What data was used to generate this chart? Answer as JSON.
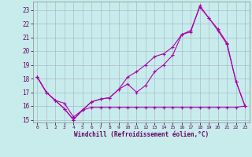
{
  "xlabel": "Windchill (Refroidissement éolien,°C)",
  "bg_color": "#c8ecec",
  "grid_color": "#aabbcc",
  "line_color": "#aa00aa",
  "xlim": [
    -0.5,
    23.5
  ],
  "ylim": [
    14.8,
    23.6
  ],
  "yticks": [
    15,
    16,
    17,
    18,
    19,
    20,
    21,
    22,
    23
  ],
  "xticks": [
    0,
    1,
    2,
    3,
    4,
    5,
    6,
    7,
    8,
    9,
    10,
    11,
    12,
    13,
    14,
    15,
    16,
    17,
    18,
    19,
    20,
    21,
    22,
    23
  ],
  "line1_x": [
    0,
    1,
    2,
    3,
    4,
    5,
    6,
    7,
    8,
    9,
    10,
    11,
    12,
    13,
    14,
    15,
    16,
    17,
    18,
    19,
    20,
    21,
    22,
    23
  ],
  "line1_y": [
    18.1,
    17.0,
    16.4,
    15.8,
    15.0,
    15.7,
    16.3,
    16.5,
    16.6,
    17.2,
    17.6,
    17.0,
    17.5,
    18.5,
    19.0,
    19.7,
    21.2,
    21.5,
    23.2,
    22.4,
    21.5,
    20.5,
    17.8,
    16.0
  ],
  "line2_x": [
    0,
    1,
    2,
    3,
    4,
    5,
    6,
    7,
    8,
    9,
    10,
    11,
    12,
    13,
    14,
    15,
    16,
    17,
    18,
    19,
    20,
    21,
    22,
    23
  ],
  "line2_y": [
    18.1,
    17.0,
    16.4,
    15.8,
    15.0,
    15.7,
    16.3,
    16.5,
    16.6,
    17.2,
    18.1,
    18.5,
    19.0,
    19.6,
    19.8,
    20.3,
    21.2,
    21.4,
    23.3,
    22.4,
    21.6,
    20.6,
    17.8,
    16.0
  ],
  "line3_x": [
    0,
    1,
    2,
    3,
    4,
    5,
    6,
    7,
    8,
    9,
    10,
    11,
    12,
    13,
    14,
    15,
    16,
    17,
    18,
    19,
    20,
    21,
    22,
    23
  ],
  "line3_y": [
    18.1,
    17.0,
    16.4,
    16.2,
    15.2,
    15.7,
    15.9,
    15.9,
    15.9,
    15.9,
    15.9,
    15.9,
    15.9,
    15.9,
    15.9,
    15.9,
    15.9,
    15.9,
    15.9,
    15.9,
    15.9,
    15.9,
    15.9,
    16.0
  ]
}
